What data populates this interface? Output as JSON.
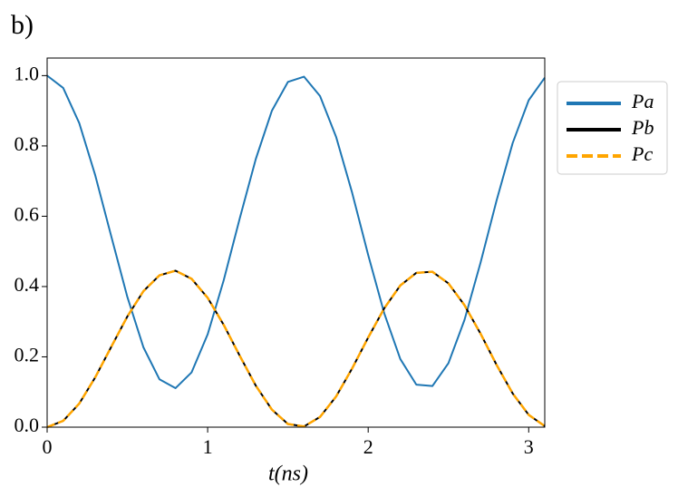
{
  "chart_data": {
    "type": "line",
    "title": "b)",
    "xlabel": "t(ns)",
    "x": [
      0,
      0.1,
      0.2,
      0.3,
      0.4,
      0.5,
      0.6,
      0.7,
      0.8,
      0.9,
      1.0,
      1.1,
      1.2,
      1.3,
      1.4,
      1.5,
      1.6,
      1.7,
      1.8,
      1.9,
      2.0,
      2.1,
      2.2,
      2.3,
      2.4,
      2.5,
      2.6,
      2.7,
      2.8,
      2.9,
      3.0,
      3.1
    ],
    "series": [
      {
        "name": "Pa",
        "color": "#1f77b4",
        "dash": "solid",
        "values": [
          1,
          0.965,
          0.865,
          0.716,
          0.542,
          0.37,
          0.227,
          0.136,
          0.111,
          0.156,
          0.264,
          0.418,
          0.594,
          0.763,
          0.9,
          0.982,
          0.997,
          0.942,
          0.826,
          0.667,
          0.49,
          0.324,
          0.194,
          0.121,
          0.117,
          0.182,
          0.305,
          0.468,
          0.645,
          0.808,
          0.93,
          0.994
        ]
      },
      {
        "name": "Pb",
        "color": "#000000",
        "dash": "solid",
        "values": [
          0,
          0.018,
          0.067,
          0.142,
          0.229,
          0.315,
          0.387,
          0.432,
          0.445,
          0.422,
          0.368,
          0.291,
          0.203,
          0.118,
          0.05,
          0.009,
          0.002,
          0.029,
          0.087,
          0.167,
          0.255,
          0.338,
          0.403,
          0.439,
          0.442,
          0.409,
          0.347,
          0.266,
          0.177,
          0.096,
          0.035,
          0.003
        ]
      },
      {
        "name": "Pc",
        "color": "#ffa500",
        "dash": "dashed",
        "values": [
          0,
          0.018,
          0.067,
          0.142,
          0.229,
          0.315,
          0.387,
          0.432,
          0.445,
          0.422,
          0.368,
          0.291,
          0.203,
          0.118,
          0.05,
          0.009,
          0.002,
          0.029,
          0.087,
          0.167,
          0.255,
          0.338,
          0.403,
          0.439,
          0.442,
          0.409,
          0.347,
          0.266,
          0.177,
          0.096,
          0.035,
          0.003
        ]
      }
    ],
    "xlim": [
      0,
      3.1
    ],
    "ylim": [
      0,
      1.05
    ],
    "xticks": [
      0,
      1,
      2,
      3
    ],
    "yticks": [
      {
        "value": 0,
        "label": "0.0"
      },
      0.2,
      0.4,
      0.6,
      0.8,
      {
        "value": 1,
        "label": "1.0"
      }
    ],
    "legend": "outside-upper-right"
  }
}
